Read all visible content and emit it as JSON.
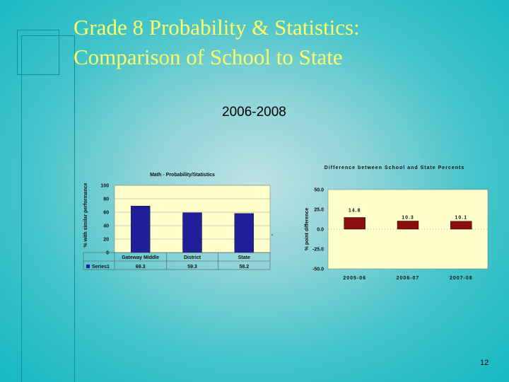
{
  "slide": {
    "title_line1": "Grade 8 Probability & Statistics:",
    "title_line2": "Comparison of School to State",
    "subtitle": "2006-2008",
    "page_number": "12"
  },
  "colors": {
    "bar_left": "#1f1f9a",
    "bar_right": "#8b0d0d",
    "plot_bg": "#ffffcc",
    "title_color": "#ffff66"
  },
  "chart_data": [
    {
      "type": "bar",
      "title": "Math - Probability/Statistics",
      "ylabel": "% with similar performance",
      "xlabel": "",
      "categories": [
        "Gateway Middle",
        "District",
        "State"
      ],
      "series": [
        {
          "name": "Series1",
          "values": [
            69.3,
            59.3,
            58.2
          ]
        }
      ],
      "table_values": [
        "69.3",
        "59.3",
        "58.2"
      ],
      "ylim": [
        0,
        100
      ],
      "yticks": [
        "0",
        "20",
        "40",
        "60",
        "80",
        "100"
      ],
      "grid": true,
      "legend": "bottom-left"
    },
    {
      "type": "bar",
      "title": "Difference between School and State Percents",
      "ylabel": "% point difference",
      "xlabel": "",
      "categories": [
        "2005-06",
        "2006-07",
        "2007-08"
      ],
      "series": [
        {
          "values": [
            14.8,
            10.3,
            10.1
          ]
        }
      ],
      "data_labels": [
        "14.8",
        "10.3",
        "10.1"
      ],
      "ylim": [
        -50,
        50
      ],
      "yticks": [
        "50.0",
        "25.0",
        "0.0",
        "-25.0",
        "-50.0"
      ],
      "grid": false
    }
  ]
}
